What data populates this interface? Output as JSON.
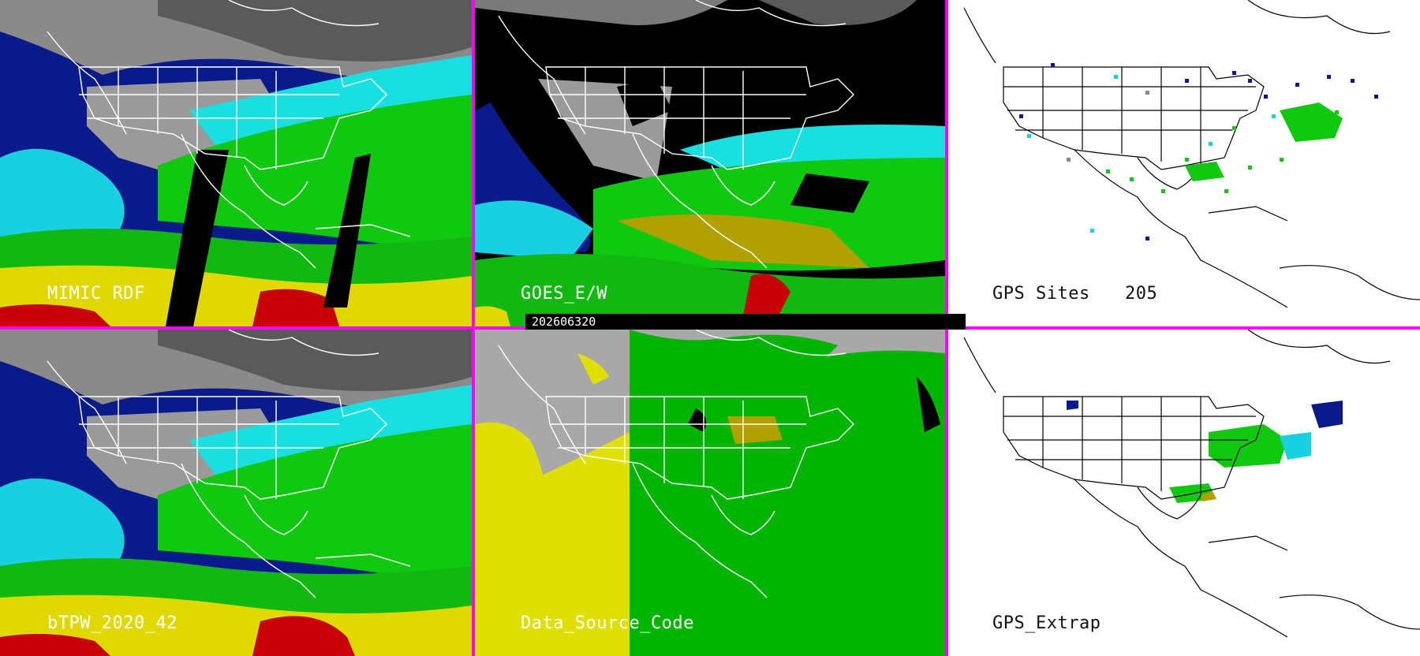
{
  "panels": {
    "mimic_rdf": {
      "label": "MIMIC RDF"
    },
    "goes_ew": {
      "label": "GOES_E/W"
    },
    "gps_sites": {
      "label": "GPS Sites",
      "count": "205"
    },
    "btpw": {
      "label": "bTPW_2020_42"
    },
    "data_source_code": {
      "label": "Data_Source_Code"
    },
    "gps_extrap": {
      "label": "GPS_Extrap"
    }
  },
  "timestamp": "202606320",
  "colors": {
    "divider": "#ff00ff",
    "dry_gray": "#a0a0a0",
    "low_blue": "#0a1a8a",
    "cyan": "#19e0e0",
    "green": "#10c810",
    "yellow": "#e0d800",
    "red": "#c8000a",
    "data_gray": "#a8a8a8",
    "data_yellow": "#e0e000",
    "data_green": "#00b400"
  }
}
